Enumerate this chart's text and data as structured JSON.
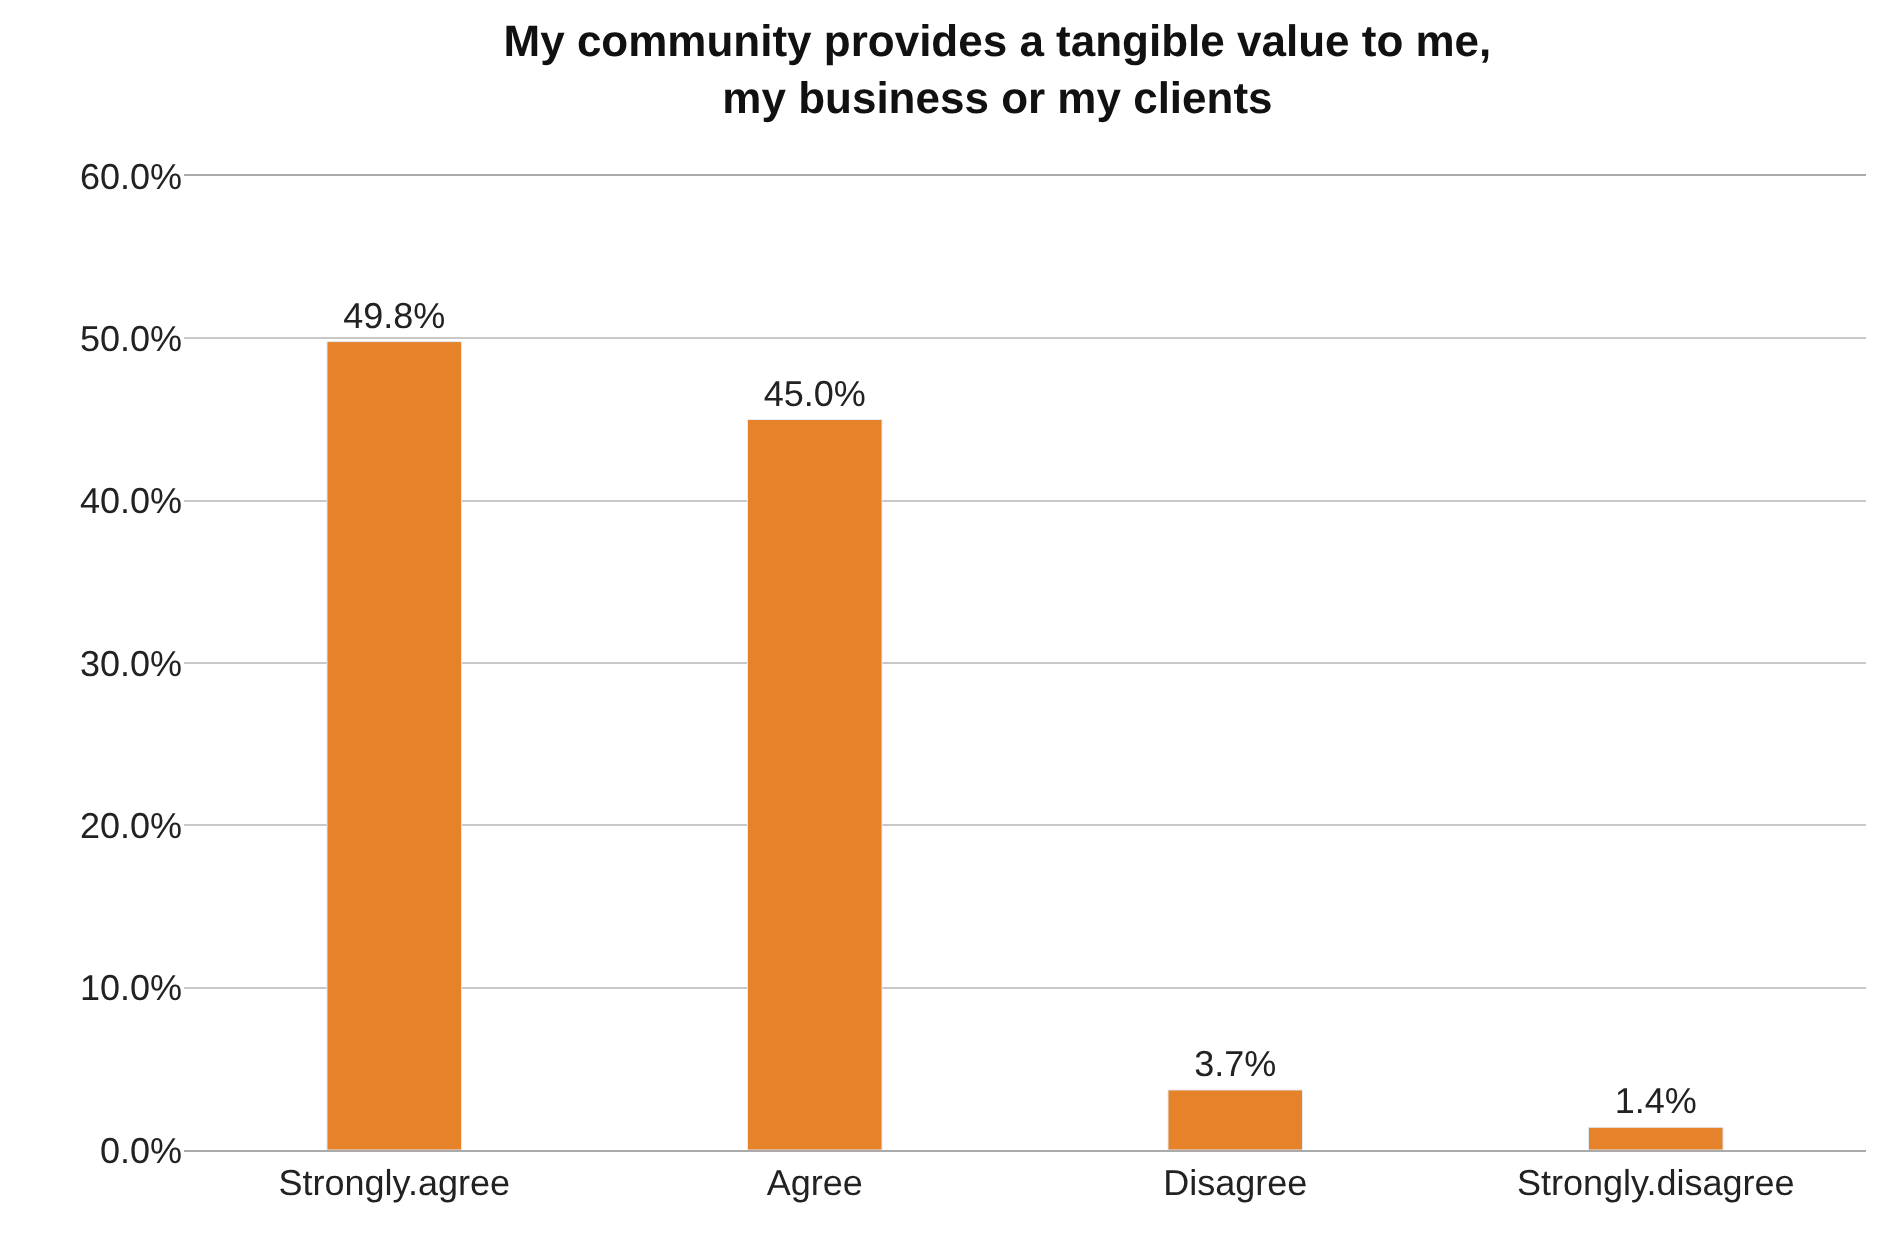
{
  "chart_data": {
    "type": "bar",
    "title": "My community provides a tangible value to me,\nmy business or my clients",
    "categories": [
      "Strongly.agree",
      "Agree",
      "Disagree",
      "Strongly.disagree"
    ],
    "values": [
      49.8,
      45.0,
      3.7,
      1.4
    ],
    "value_labels": [
      "49.8%",
      "45.0%",
      "3.7%",
      "1.4%"
    ],
    "color": "#e5822a",
    "ylim": [
      0,
      60
    ],
    "yticks": [
      {
        "value": 0,
        "label": "0.0%"
      },
      {
        "value": 10,
        "label": "10.0%"
      },
      {
        "value": 20,
        "label": "20.0%"
      },
      {
        "value": 30,
        "label": "30.0%"
      },
      {
        "value": 40,
        "label": "40.0%"
      },
      {
        "value": 50,
        "label": "50.0%"
      },
      {
        "value": 60,
        "label": "60.0%"
      }
    ],
    "grid": "y",
    "legend": false
  }
}
